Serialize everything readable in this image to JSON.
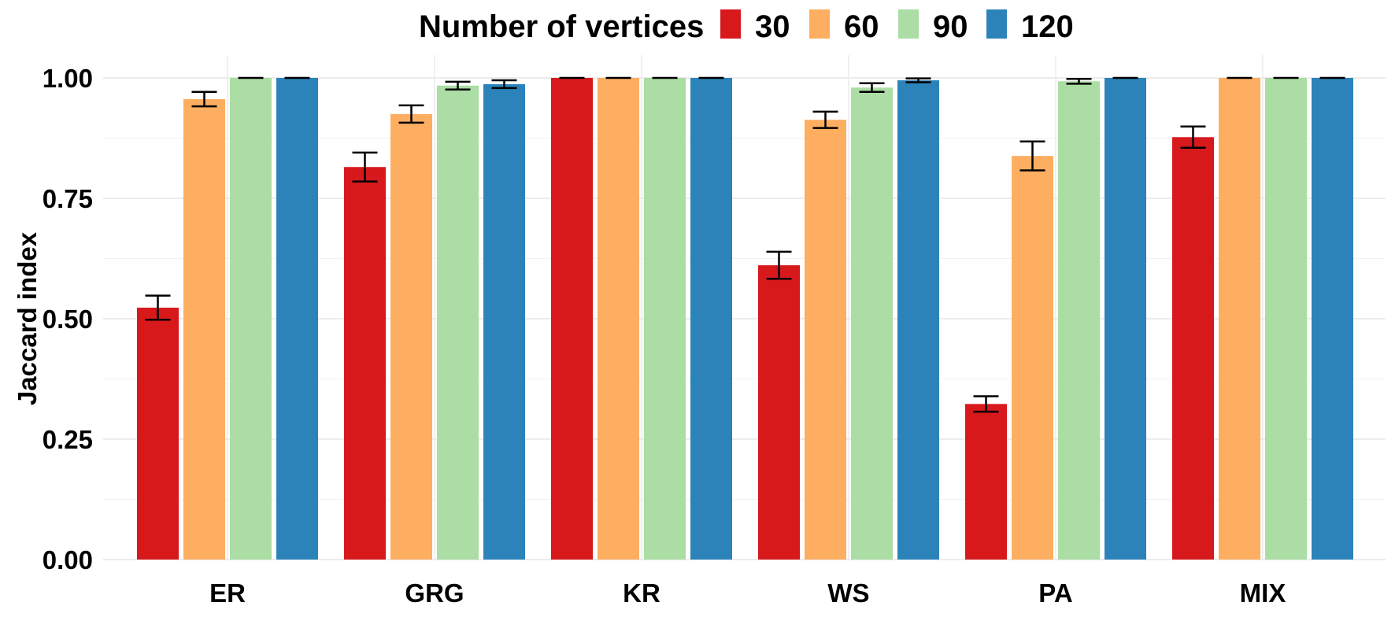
{
  "chart_data": {
    "type": "bar",
    "title": "",
    "xlabel": "",
    "ylabel": "Jaccard index",
    "ylim": [
      0,
      1
    ],
    "yticks": [
      "0.00",
      "0.25",
      "0.50",
      "0.75",
      "1.00"
    ],
    "grid": true,
    "legend_position": "top",
    "legend_title": "Number of vertices",
    "categories": [
      "ER",
      "GRG",
      "KR",
      "WS",
      "PA",
      "MIX"
    ],
    "series": [
      {
        "name": "30",
        "color": "#d7191c",
        "values": [
          0.523,
          0.815,
          1.0,
          0.611,
          0.323,
          0.877
        ],
        "errors": [
          0.025,
          0.03,
          0.0,
          0.028,
          0.016,
          0.022
        ]
      },
      {
        "name": "60",
        "color": "#fdae61",
        "values": [
          0.956,
          0.925,
          1.0,
          0.913,
          0.838,
          1.0
        ],
        "errors": [
          0.015,
          0.018,
          0.0,
          0.017,
          0.03,
          0.0
        ]
      },
      {
        "name": "90",
        "color": "#abdda4",
        "values": [
          1.0,
          0.984,
          1.0,
          0.98,
          0.993,
          1.0
        ],
        "errors": [
          0.0,
          0.008,
          0.0,
          0.009,
          0.005,
          0.0
        ]
      },
      {
        "name": "120",
        "color": "#2b83ba",
        "values": [
          1.0,
          0.987,
          1.0,
          0.995,
          1.0,
          1.0
        ],
        "errors": [
          0.0,
          0.008,
          0.0,
          0.004,
          0.0,
          0.0
        ]
      }
    ]
  },
  "legend": {
    "title": "Number of vertices",
    "items": [
      {
        "label": "30",
        "color": "#d7191c"
      },
      {
        "label": "60",
        "color": "#fdae61"
      },
      {
        "label": "90",
        "color": "#abdda4"
      },
      {
        "label": "120",
        "color": "#2b83ba"
      }
    ]
  },
  "axes": {
    "y_title": "Jaccard index",
    "y_ticks": [
      "0.00",
      "0.25",
      "0.50",
      "0.75",
      "1.00"
    ],
    "x_ticks": [
      "ER",
      "GRG",
      "KR",
      "WS",
      "PA",
      "MIX"
    ]
  }
}
